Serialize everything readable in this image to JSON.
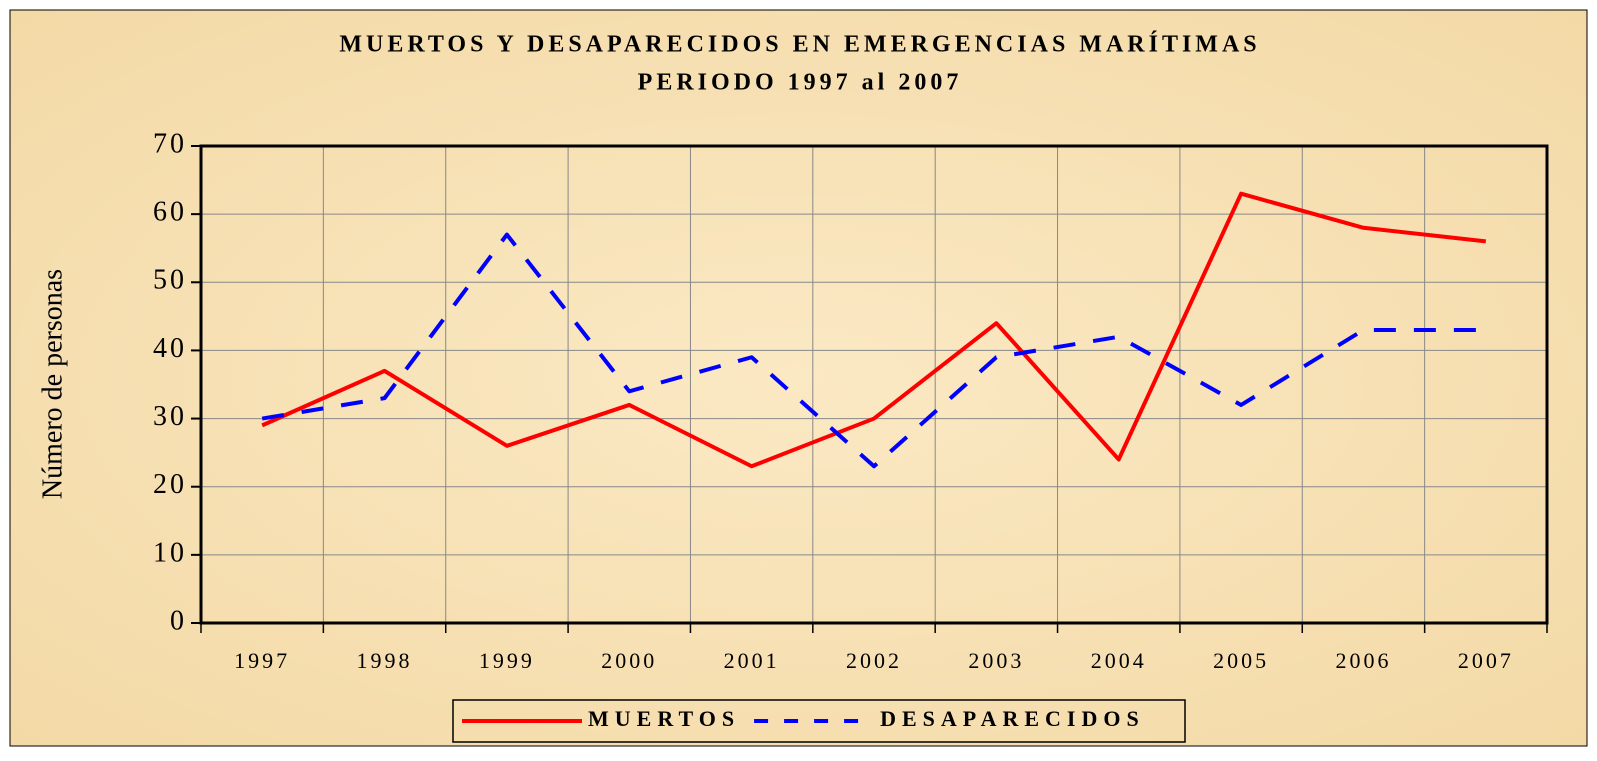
{
  "chart_data": {
    "type": "line",
    "title": "MUERTOS Y DESAPARECIDOS EN EMERGENCIAS MARÍTIMAS",
    "subtitle": "PERIODO 1997 al 2007",
    "y_label": "Número de personas",
    "categories": [
      "1997",
      "1998",
      "1999",
      "2000",
      "2001",
      "2002",
      "2003",
      "2004",
      "2005",
      "2006",
      "2007"
    ],
    "series": [
      {
        "name": "MUERTOS",
        "color": "#ff0000",
        "dashed": false,
        "values": [
          29,
          37,
          26,
          32,
          23,
          30,
          44,
          24,
          63,
          58,
          56
        ]
      },
      {
        "name": "DESAPARECIDOS",
        "color": "#0000ff",
        "dashed": true,
        "values": [
          30,
          33,
          57,
          34,
          39,
          23,
          39,
          42,
          32,
          43,
          43
        ]
      }
    ],
    "ylim": [
      0,
      70
    ],
    "yticks": [
      0,
      10,
      20,
      30,
      40,
      50,
      60,
      70
    ],
    "grid": true,
    "legend": "bottom"
  }
}
